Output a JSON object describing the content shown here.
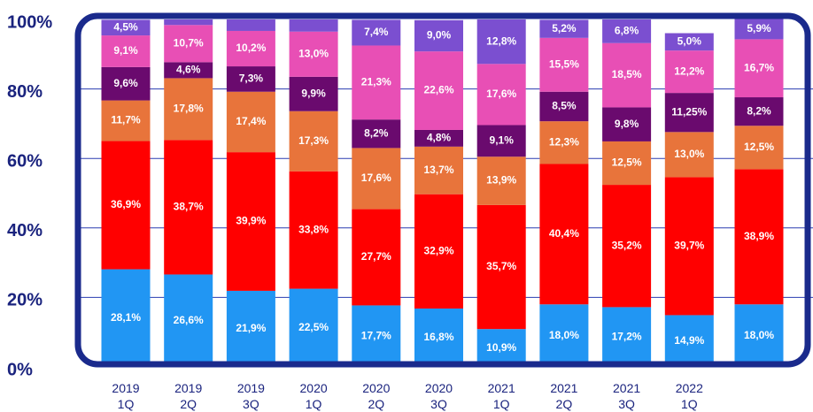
{
  "chart_data": {
    "type": "stacked_bar",
    "categories": [
      "2019\n1Q",
      "2019\n2Q",
      "2019\n3Q",
      "2020\n1Q",
      "2020\n2Q",
      "2020\n3Q",
      "2021\n1Q",
      "2021\n2Q",
      "2021\n3Q",
      "2022\n1Q",
      null
    ],
    "series": [
      {
        "color": "#2196f3",
        "values": [
          28.1,
          26.6,
          21.9,
          22.5,
          17.7,
          16.8,
          10.9,
          18.0,
          17.2,
          14.9,
          18.0
        ],
        "value_labels": [
          "28,1%",
          "26,6%",
          "21,9%",
          "22,5%",
          "17,7%",
          "16,8%",
          "10,9%",
          "18,0%",
          "17,2%",
          "14,9%",
          "18,0%"
        ]
      },
      {
        "color": "#ff0000",
        "values": [
          36.9,
          38.7,
          39.9,
          33.8,
          27.7,
          32.9,
          35.7,
          40.4,
          35.2,
          39.7,
          38.9
        ],
        "value_labels": [
          "36,9%",
          "38,7%",
          "39,9%",
          "33,8%",
          "27,7%",
          "32,9%",
          "35,7%",
          "40,4%",
          "35,2%",
          "39,7%",
          "38,9%"
        ]
      },
      {
        "color": "#e8743b",
        "values": [
          11.7,
          17.8,
          17.4,
          17.3,
          17.6,
          13.7,
          13.9,
          12.3,
          12.5,
          13.0,
          12.5
        ],
        "value_labels": [
          "11,7%",
          "17,8%",
          "17,4%",
          "17,3%",
          "17,6%",
          "13,7%",
          "13,9%",
          "12,3%",
          "12,5%",
          "13,0%",
          "12,5%"
        ]
      },
      {
        "color": "#6a0a6e",
        "values": [
          9.6,
          4.6,
          7.3,
          9.9,
          8.2,
          4.8,
          9.1,
          8.5,
          9.8,
          11.25,
          8.2
        ],
        "value_labels": [
          "9,6%",
          "4,6%",
          "7,3%",
          "9,9%",
          "8,2%",
          "4,8%",
          "9,1%",
          "8,5%",
          "9,8%",
          "11,25%",
          "8,2%"
        ]
      },
      {
        "color": "#e84fb5",
        "values": [
          9.1,
          10.7,
          10.2,
          13.0,
          21.3,
          22.6,
          17.6,
          15.5,
          18.5,
          12.2,
          16.7
        ],
        "value_labels": [
          "9,1%",
          "10,7%",
          "10,2%",
          "13,0%",
          "21,3%",
          "22,6%",
          "17,6%",
          "15,5%",
          "18,5%",
          "12,2%",
          "16,7%"
        ]
      },
      {
        "color": "#7b4fd0",
        "values": [
          4.5,
          1.6,
          3.3,
          3.5,
          7.4,
          9.0,
          12.8,
          5.2,
          6.8,
          5.0,
          5.9
        ],
        "value_labels": [
          "4,5%",
          null,
          null,
          null,
          "7,4%",
          "9,0%",
          "12,8%",
          "5,2%",
          "6,8%",
          "5,0%",
          "5,9%"
        ]
      }
    ],
    "ylim": [
      0,
      100
    ],
    "yticks": [
      {
        "value": 0,
        "label": "0%"
      },
      {
        "value": 20,
        "label": "20%"
      },
      {
        "value": 40,
        "label": "40%"
      },
      {
        "value": 60,
        "label": "60%"
      },
      {
        "value": 80,
        "label": "80%"
      },
      {
        "value": 100,
        "label": "100%"
      }
    ],
    "grid": true
  }
}
